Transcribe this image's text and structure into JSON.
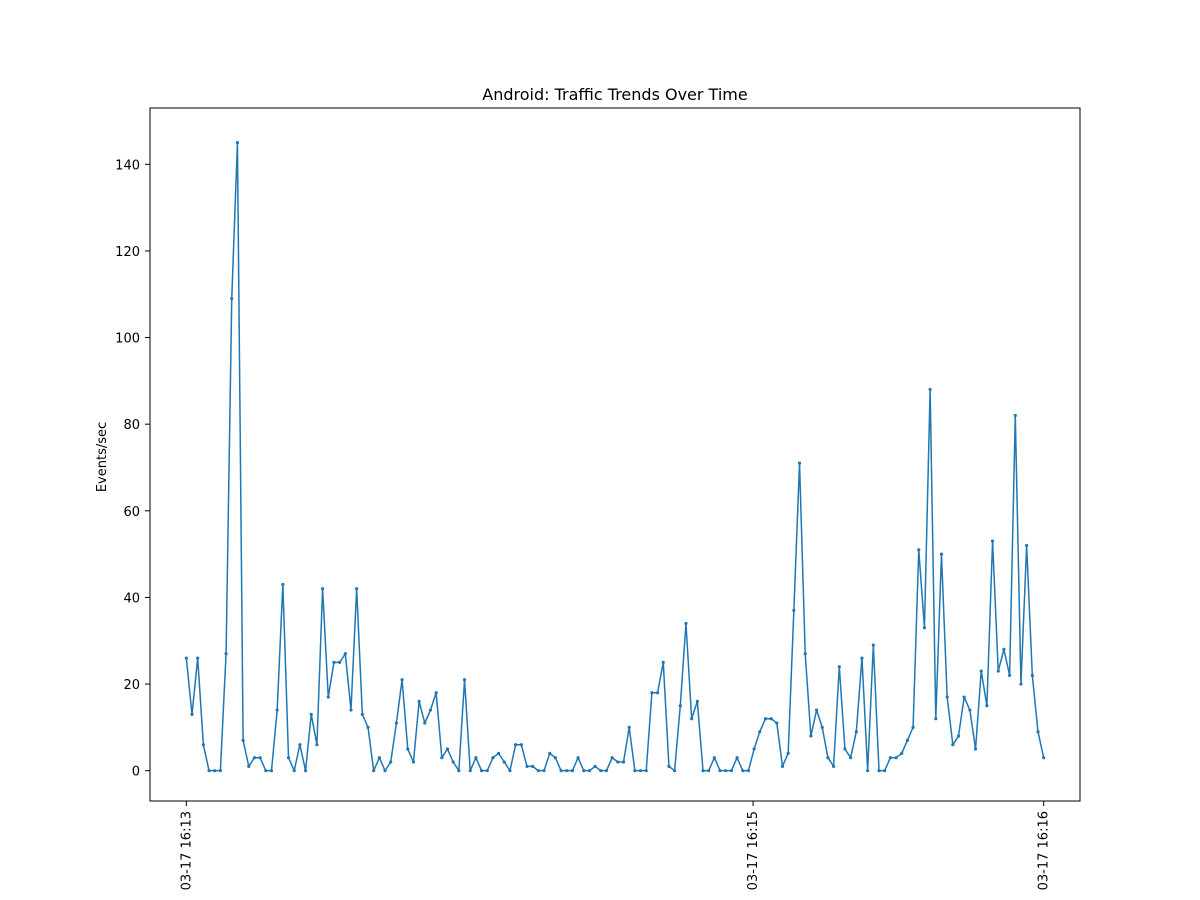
{
  "chart_data": {
    "type": "line",
    "title": "Android: Traffic Trends Over Time",
    "xlabel": "",
    "ylabel": "Events/sec",
    "ylim": [
      -7,
      153
    ],
    "xlim": [
      "03-17 16:12:55.5",
      "03-17 16:16:07.5"
    ],
    "grid": false,
    "color": "#1f77b4",
    "x_start": "03-17 16:13:03",
    "x_end": "03-17 16:16:00",
    "y_ticks": [
      0,
      20,
      40,
      60,
      80,
      100,
      120,
      140
    ],
    "x_ticks": [
      {
        "label": "03-17 16:13",
        "value": "03-17 16:13:03"
      },
      {
        "label": "03-17 16:15",
        "value": "03-17 16:15:00"
      },
      {
        "label": "03-17 16:16",
        "value": "03-17 16:16:00"
      }
    ],
    "values": [
      26,
      13,
      26,
      6,
      0,
      0,
      0,
      27,
      109,
      145,
      7,
      1,
      3,
      3,
      0,
      0,
      14,
      43,
      3,
      0,
      6,
      0,
      13,
      6,
      42,
      17,
      25,
      25,
      27,
      14,
      42,
      13,
      10,
      0,
      3,
      0,
      2,
      11,
      21,
      5,
      2,
      16,
      11,
      14,
      18,
      3,
      5,
      2,
      0,
      21,
      0,
      3,
      0,
      0,
      3,
      4,
      2,
      0,
      6,
      6,
      1,
      1,
      0,
      0,
      4,
      3,
      0,
      0,
      0,
      3,
      0,
      0,
      1,
      0,
      0,
      3,
      2,
      2,
      10,
      0,
      0,
      0,
      18,
      18,
      25,
      1,
      0,
      15,
      34,
      12,
      16,
      0,
      0,
      3,
      0,
      0,
      0,
      3,
      0,
      0,
      5,
      9,
      12,
      12,
      11,
      1,
      4,
      37,
      71,
      27,
      8,
      14,
      10,
      3,
      1,
      24,
      5,
      3,
      9,
      26,
      0,
      29,
      0,
      0,
      3,
      3,
      4,
      7,
      10,
      51,
      33,
      88,
      12,
      50,
      17,
      6,
      8,
      17,
      14,
      5,
      23,
      15,
      53,
      23,
      28,
      22,
      82,
      20,
      52,
      22,
      9,
      3
    ]
  }
}
